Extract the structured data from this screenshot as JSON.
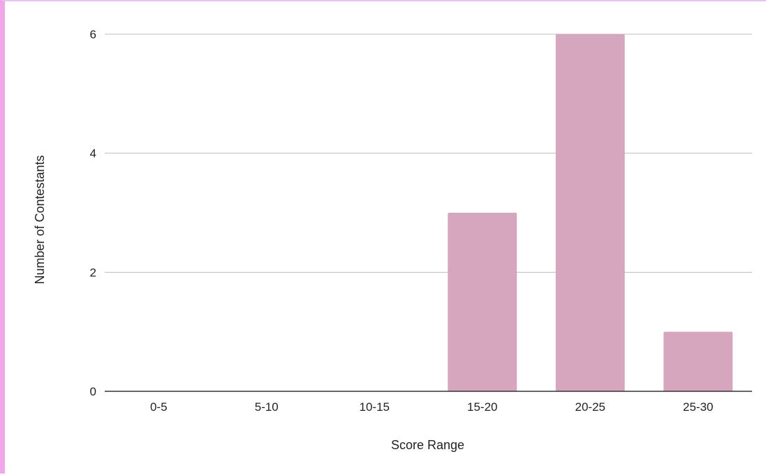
{
  "chart_data": {
    "type": "bar",
    "title": "",
    "xlabel": "Score Range",
    "ylabel": "Number of Contestants",
    "categories": [
      "0-5",
      "5-10",
      "10-15",
      "15-20",
      "20-25",
      "25-30"
    ],
    "values": [
      0,
      0,
      0,
      3,
      6,
      1
    ],
    "ylim": [
      0,
      6
    ],
    "yticks": [
      "0",
      "2",
      "4",
      "6"
    ],
    "grid": true,
    "legend": "none",
    "colors": {
      "bar": "#d5a6bd",
      "grid": "#bdbdbd",
      "axis": "#333333",
      "frame_left": "#f2a8e8",
      "frame_top": "#e6c3f0"
    }
  }
}
